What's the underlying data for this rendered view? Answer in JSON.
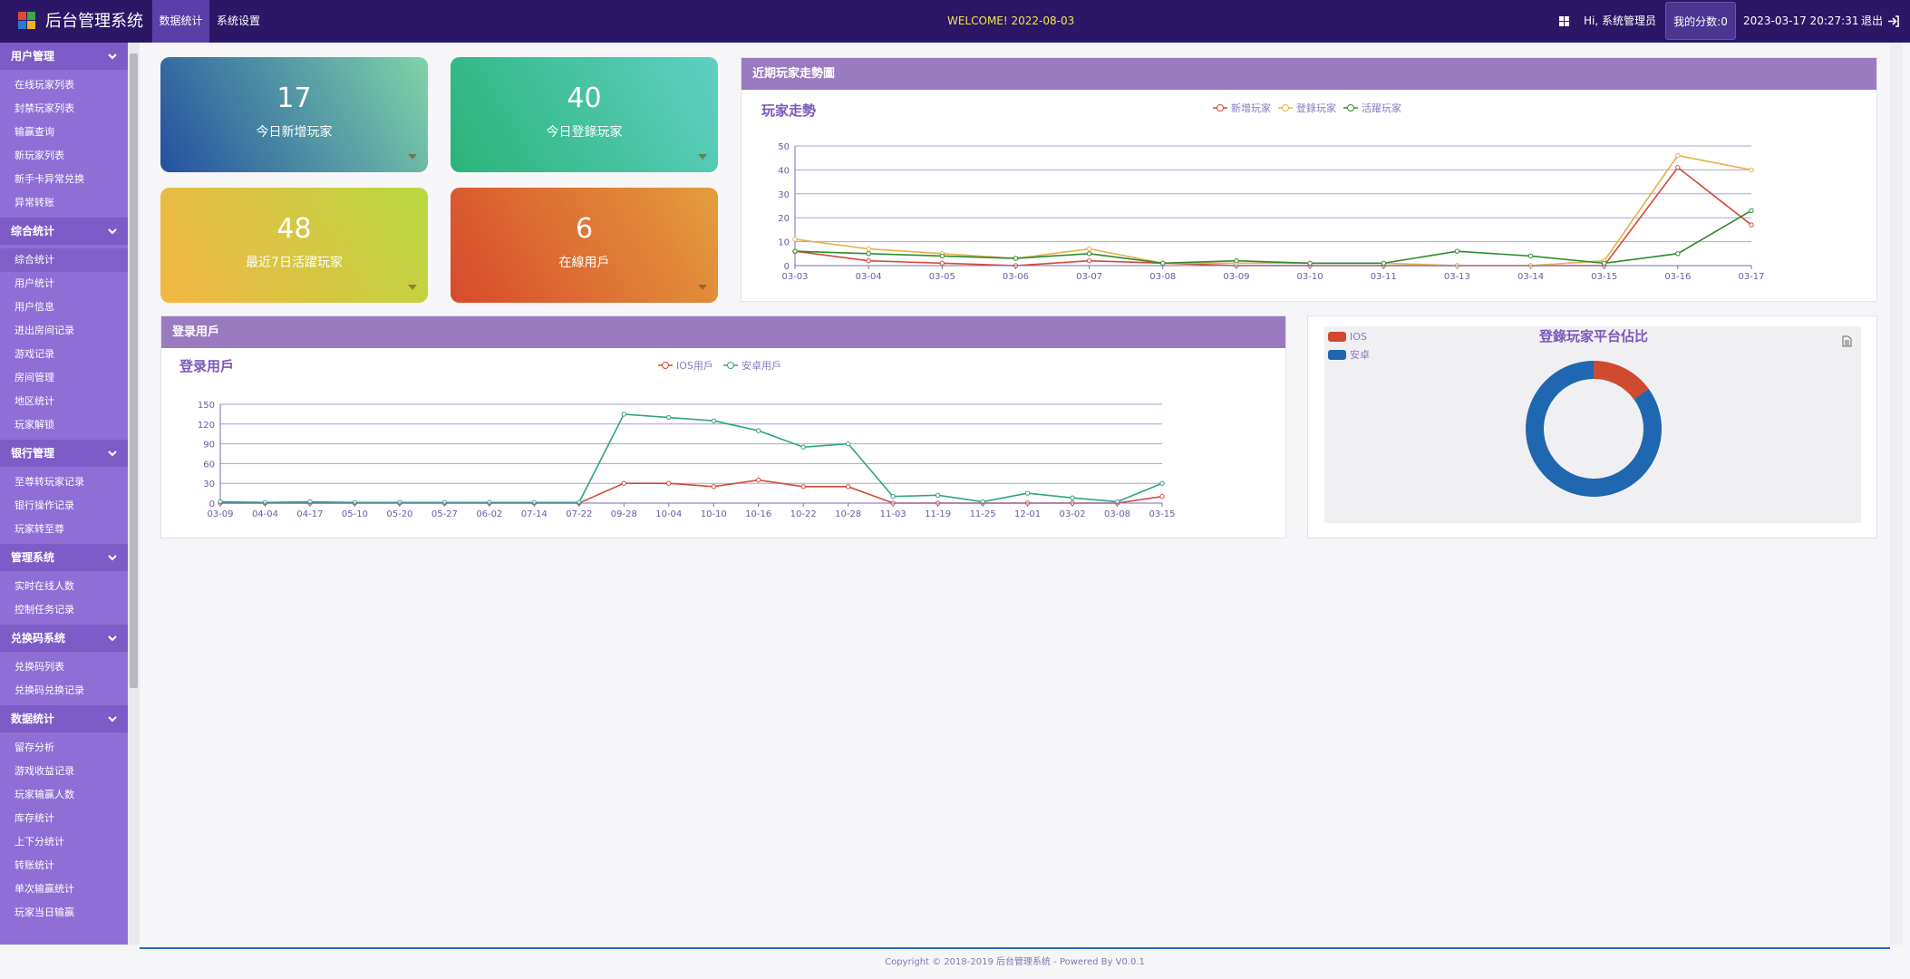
{
  "header": {
    "title": "后台管理系统",
    "tabs": [
      "数据统计",
      "系统设置"
    ],
    "welcome": "WELCOME! 2022-08-03",
    "greeting": "Hi, 系统管理员",
    "score": "我的分数:0",
    "datetime": "2023-03-17 20:27:31",
    "logout": "退出"
  },
  "sidebar": [
    {
      "title": "用户管理",
      "items": [
        "在线玩家列表",
        "封禁玩家列表",
        "输赢查询",
        "新玩家列表",
        "新手卡异常兑换",
        "异常转账"
      ]
    },
    {
      "title": "综合统计",
      "items": [
        "综合统计",
        "用户统计",
        "用户信息",
        "进出房间记录",
        "游戏记录",
        "房间管理",
        "地区统计",
        "玩家解锁"
      ]
    },
    {
      "title": "银行管理",
      "items": [
        "至尊转玩家记录",
        "银行操作记录",
        "玩家转至尊"
      ]
    },
    {
      "title": "管理系统",
      "items": [
        "实时在线人数",
        "控制任务记录"
      ]
    },
    {
      "title": "兑换码系统",
      "items": [
        "兑换码列表",
        "兑换码兑换记录"
      ]
    },
    {
      "title": "数据统计",
      "items": [
        "留存分析",
        "游戏收益记录",
        "玩家输赢人数",
        "库存统计",
        "上下分统计",
        "转账统计",
        "单次输赢统计",
        "玩家当日输赢"
      ]
    }
  ],
  "stat_cards": [
    {
      "value": 17,
      "label": "今日新增玩家"
    },
    {
      "value": 40,
      "label": "今日登錄玩家"
    },
    {
      "value": 48,
      "label": "最近7日活躍玩家"
    },
    {
      "value": 6,
      "label": "在線用戶"
    }
  ],
  "panels": [
    "近期玩家走勢圖",
    "登录用戶"
  ],
  "chart_data": [
    {
      "type": "line",
      "title": "玩家走勢",
      "categories": [
        "03-03",
        "03-04",
        "03-05",
        "03-06",
        "03-07",
        "03-08",
        "03-09",
        "03-10",
        "03-11",
        "03-13",
        "03-14",
        "03-15",
        "03-16",
        "03-17"
      ],
      "series": [
        {
          "name": "新增玩家",
          "color": "#d4493a",
          "values": [
            6,
            2,
            1,
            0,
            2,
            1,
            0,
            0,
            0,
            0,
            0,
            0,
            41,
            17
          ]
        },
        {
          "name": "登錄玩家",
          "color": "#e8b04a",
          "values": [
            11,
            7,
            5,
            3,
            7,
            1,
            1,
            1,
            1,
            0,
            0,
            2,
            46,
            40
          ]
        },
        {
          "name": "活躍玩家",
          "color": "#2e8b2e",
          "values": [
            6,
            5,
            4,
            3,
            5,
            1,
            2,
            1,
            1,
            6,
            4,
            1,
            5,
            23
          ]
        }
      ],
      "ylim": [
        0,
        50
      ],
      "yticks": [
        0,
        10,
        20,
        30,
        40,
        50
      ],
      "grid": true,
      "legend": "top"
    },
    {
      "type": "line",
      "title": "登录用戶",
      "categories": [
        "03-09",
        "04-04",
        "04-17",
        "05-10",
        "05-20",
        "05-27",
        "06-02",
        "07-14",
        "07-22",
        "09-28",
        "10-04",
        "10-10",
        "10-16",
        "10-22",
        "10-28",
        "11-03",
        "11-19",
        "11-25",
        "12-01",
        "03-02",
        "03-08",
        "03-15"
      ],
      "series": [
        {
          "name": "IOS用戶",
          "color": "#d4493a",
          "values": [
            0,
            0,
            0,
            0,
            0,
            0,
            0,
            0,
            0,
            30,
            30,
            25,
            35,
            25,
            25,
            0,
            0,
            0,
            0,
            0,
            0,
            10
          ]
        },
        {
          "name": "安卓用戶",
          "color": "#2fa57e",
          "values": [
            2,
            1,
            2,
            1,
            1,
            1,
            1,
            1,
            1,
            135,
            130,
            125,
            110,
            85,
            90,
            10,
            12,
            2,
            15,
            8,
            2,
            30
          ]
        }
      ],
      "ylim": [
        0,
        150
      ],
      "yticks": [
        0,
        30,
        60,
        90,
        120,
        150
      ],
      "grid": true,
      "legend": "top"
    },
    {
      "type": "pie",
      "title": "登錄玩家平台佔比",
      "categories": [
        "IOS",
        "安卓"
      ],
      "values": [
        15,
        85
      ],
      "colors": [
        "#d04a2f",
        "#1f67b1"
      ],
      "donut": true,
      "legend": "top-left"
    }
  ],
  "footer": "Copyright © 2018-2019 后台管理系统 - Powered By V0.0.1"
}
